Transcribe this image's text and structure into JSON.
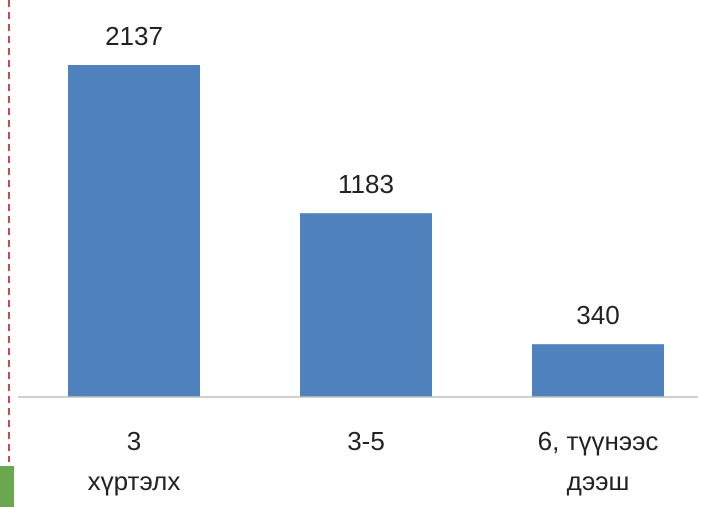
{
  "chart_data": {
    "type": "bar",
    "categories": [
      [
        "3",
        "хүртэлх"
      ],
      [
        "3-5"
      ],
      [
        "6, түүнээс",
        "дээш"
      ]
    ],
    "values": [
      2137,
      1183,
      340
    ],
    "data_labels": [
      "2137",
      "1183",
      "340"
    ],
    "title": "",
    "xlabel": "",
    "ylabel": "",
    "ylim": [
      0,
      2137
    ],
    "grid": false,
    "legend": "none",
    "bar_color": "#4F81BD",
    "axis_color": "#BFBFBF"
  },
  "decorations": {
    "left_dashed_line_color": "#C0504D",
    "corner_block_color": "#6AA84F"
  }
}
